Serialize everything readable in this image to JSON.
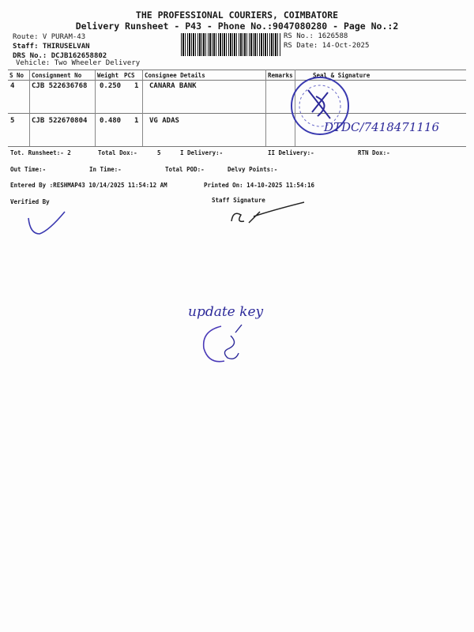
{
  "header": {
    "company": "THE PROFESSIONAL COURIERS, COIMBATORE",
    "subtitle": "Delivery Runsheet - P43 - Phone No.:9047080280 - Page No.:2",
    "route": "Route: V PURAM-43",
    "staff": "Staff: THIRUSELVAN",
    "drs_no": "DRS No.: DCJB162658802",
    "vehicle": "Vehicle: Two Wheeler Delivery",
    "rs_no": "RS No.: 1626588",
    "rs_date": "RS Date: 14-Oct-2025"
  },
  "table": {
    "columns": [
      "S No",
      "Consignment No",
      "Weight",
      "PCS",
      "Consignee Details",
      "Remarks",
      "Seal & Signature"
    ],
    "rows": [
      {
        "sno": "4",
        "consignment": "CJB 522636768",
        "weight": "0.250",
        "pcs": "1",
        "consignee": "CANARA BANK",
        "remarks": ""
      },
      {
        "sno": "5",
        "consignment": "CJB 522670804",
        "weight": "0.480",
        "pcs": "1",
        "consignee": "VG ADAS",
        "remarks": ""
      }
    ],
    "handwritten_note": "DTDC/7418471116"
  },
  "footer": {
    "tot_runsheet": "Tot. Runsheet:- 2",
    "total_dox": "Total Dox:-",
    "total_dox_value": "5",
    "i_delivery": "I Delivery:-",
    "ii_delivery": "II Delivery:-",
    "rtn_dox": "RTN Dox:-",
    "out_time": "Out Time:-",
    "in_time": "In Time:-",
    "total_pod": "Total POD:-",
    "delvy_points": "Delvy Points:-",
    "entered_by": "Entered By :RESHMAP43 10/14/2025 11:54:12 AM",
    "printed_on": "Printed On: 14-10-2025 11:54:16",
    "verified_by": "Verified By",
    "staff_signature": "Staff Signature"
  },
  "annotations": {
    "handwritten_mid": "update key"
  },
  "colors": {
    "ink": "#2d2a9a",
    "text": "#1a1a1a"
  }
}
